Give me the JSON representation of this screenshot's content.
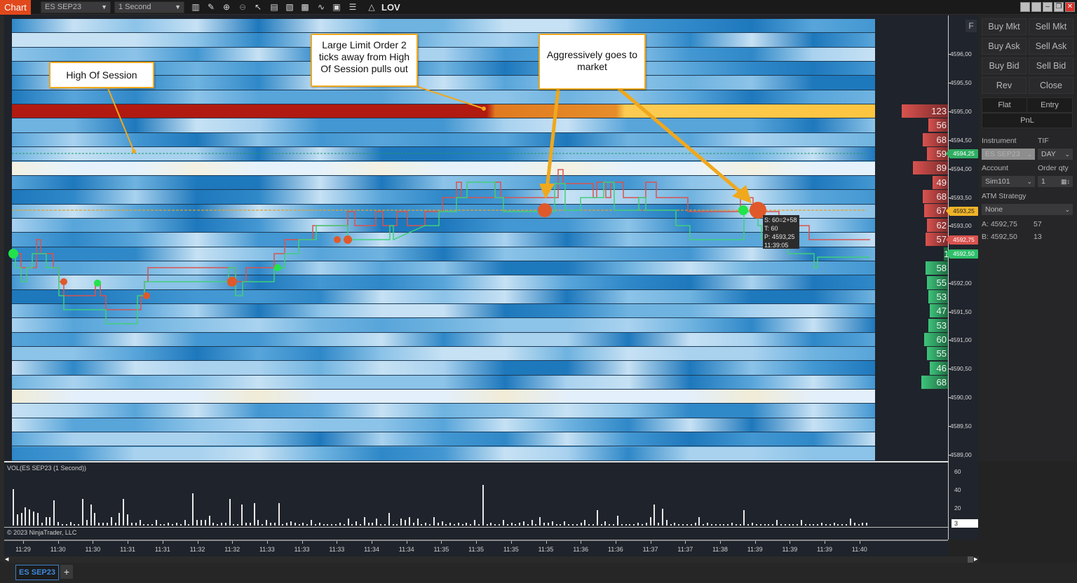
{
  "toolbar": {
    "chart_label": "Chart",
    "instrument": "ES SEP23",
    "interval": "1 Second",
    "lov_label": "LOV",
    "icons": [
      "bar-type-icon",
      "pencil-draw-icon",
      "zoom-in-icon",
      "zoom-out-icon",
      "pointer-icon",
      "data-box-icon",
      "properties-icon",
      "indicators-icon",
      "strategies-icon",
      "templates-icon",
      "list-icon"
    ]
  },
  "window_buttons": [
    "tile-1",
    "tile-2",
    "minimize",
    "restore",
    "close"
  ],
  "annotations": [
    {
      "id": "high-of-session",
      "text": "High Of Session"
    },
    {
      "id": "large-limit-order",
      "text": "Large Limit Order 2 ticks away from High Of Session pulls out"
    },
    {
      "id": "aggressive",
      "text": "Aggressively goes to market"
    }
  ],
  "tooltip": {
    "line1": "S: 60=2+58",
    "line2": "T: 60",
    "line3": "P: 4593,25",
    "line4": "11:39:05"
  },
  "price_axis": {
    "labels": [
      "4596,00",
      "4595,50",
      "4595,00",
      "4594,50",
      "4594,00",
      "4593,50",
      "4593,00",
      "4592,00",
      "4591,50",
      "4591,00",
      "4590,50",
      "4590,00",
      "4589,50",
      "4589,00"
    ],
    "tags": {
      "high": "4594,25",
      "last": "4593,25",
      "ask": "4592,75",
      "bid": "4592,50"
    },
    "f_button": "F"
  },
  "depth": {
    "asks": [
      {
        "price": "4595,00",
        "size": "123"
      },
      {
        "price": "4594,75",
        "size": "56"
      },
      {
        "price": "4594,50",
        "size": "68"
      },
      {
        "price": "4594,25",
        "size": "59"
      },
      {
        "price": "4594,00",
        "size": "89"
      },
      {
        "price": "4593,75",
        "size": "49"
      },
      {
        "price": "4593,50",
        "size": "68"
      },
      {
        "price": "4593,25",
        "size": "67"
      },
      {
        "price": "4593,00",
        "size": "62"
      },
      {
        "price": "4592,75",
        "size": "57"
      }
    ],
    "bids": [
      {
        "price": "4592,50",
        "size": "13"
      },
      {
        "price": "4592,25",
        "size": "58"
      },
      {
        "price": "4592,00",
        "size": "55"
      },
      {
        "price": "4591,75",
        "size": "53"
      },
      {
        "price": "4591,50",
        "size": "47"
      },
      {
        "price": "4591,25",
        "size": "53"
      },
      {
        "price": "4591,00",
        "size": "60"
      },
      {
        "price": "4590,75",
        "size": "55"
      },
      {
        "price": "4590,50",
        "size": "46"
      },
      {
        "price": "4590,25",
        "size": "68"
      }
    ]
  },
  "order_panel": {
    "buttons": {
      "buy_mkt": "Buy Mkt",
      "sell_mkt": "Sell Mkt",
      "buy_ask": "Buy Ask",
      "sell_ask": "Sell Ask",
      "buy_bid": "Buy Bid",
      "sell_bid": "Sell Bid",
      "rev": "Rev",
      "close": "Close",
      "flat": "Flat",
      "entry": "Entry",
      "pnl": "PnL"
    },
    "instrument_label": "Instrument",
    "instrument_value": "ES SEP23",
    "tif_label": "TIF",
    "tif_value": "DAY",
    "account_label": "Account",
    "account_value": "Sim101",
    "order_qty_label": "Order qty",
    "order_qty_value": "1",
    "atm_label": "ATM Strategy",
    "atm_value": "None",
    "ask_line": "A:  4592,75",
    "ask_size": "57",
    "bid_line": "B:  4592,50",
    "bid_size": "13"
  },
  "volume": {
    "title": "VOL(ES SEP23 (1 Second))",
    "copyright": "© 2023 NinjaTrader, LLC",
    "axis_labels": [
      "60",
      "40",
      "20"
    ],
    "current": "3"
  },
  "time_axis": {
    "labels": [
      "11:29",
      "11:30",
      "11:30",
      "11:31",
      "11:31",
      "11:32",
      "11:32",
      "11:33",
      "11:33",
      "11:33",
      "11:34",
      "11:34",
      "11:35",
      "11:35",
      "11:35",
      "11:35",
      "11:36",
      "11:36",
      "11:37",
      "11:37",
      "11:38",
      "11:39",
      "11:39",
      "11:39",
      "11:40"
    ]
  },
  "tabs": [
    {
      "label": "ES SEP23",
      "active": true
    }
  ],
  "colors": {
    "accent_orange": "#e1491c",
    "annotation_border": "#f0a81c",
    "ask_red": "#d9534f",
    "bid_green": "#3ec47b",
    "heatmap_blue": "#5aa6d8",
    "large_order_red": "#b01a10",
    "large_order_orange": "#e0862a",
    "large_order_yellow": "#fcc540"
  }
}
